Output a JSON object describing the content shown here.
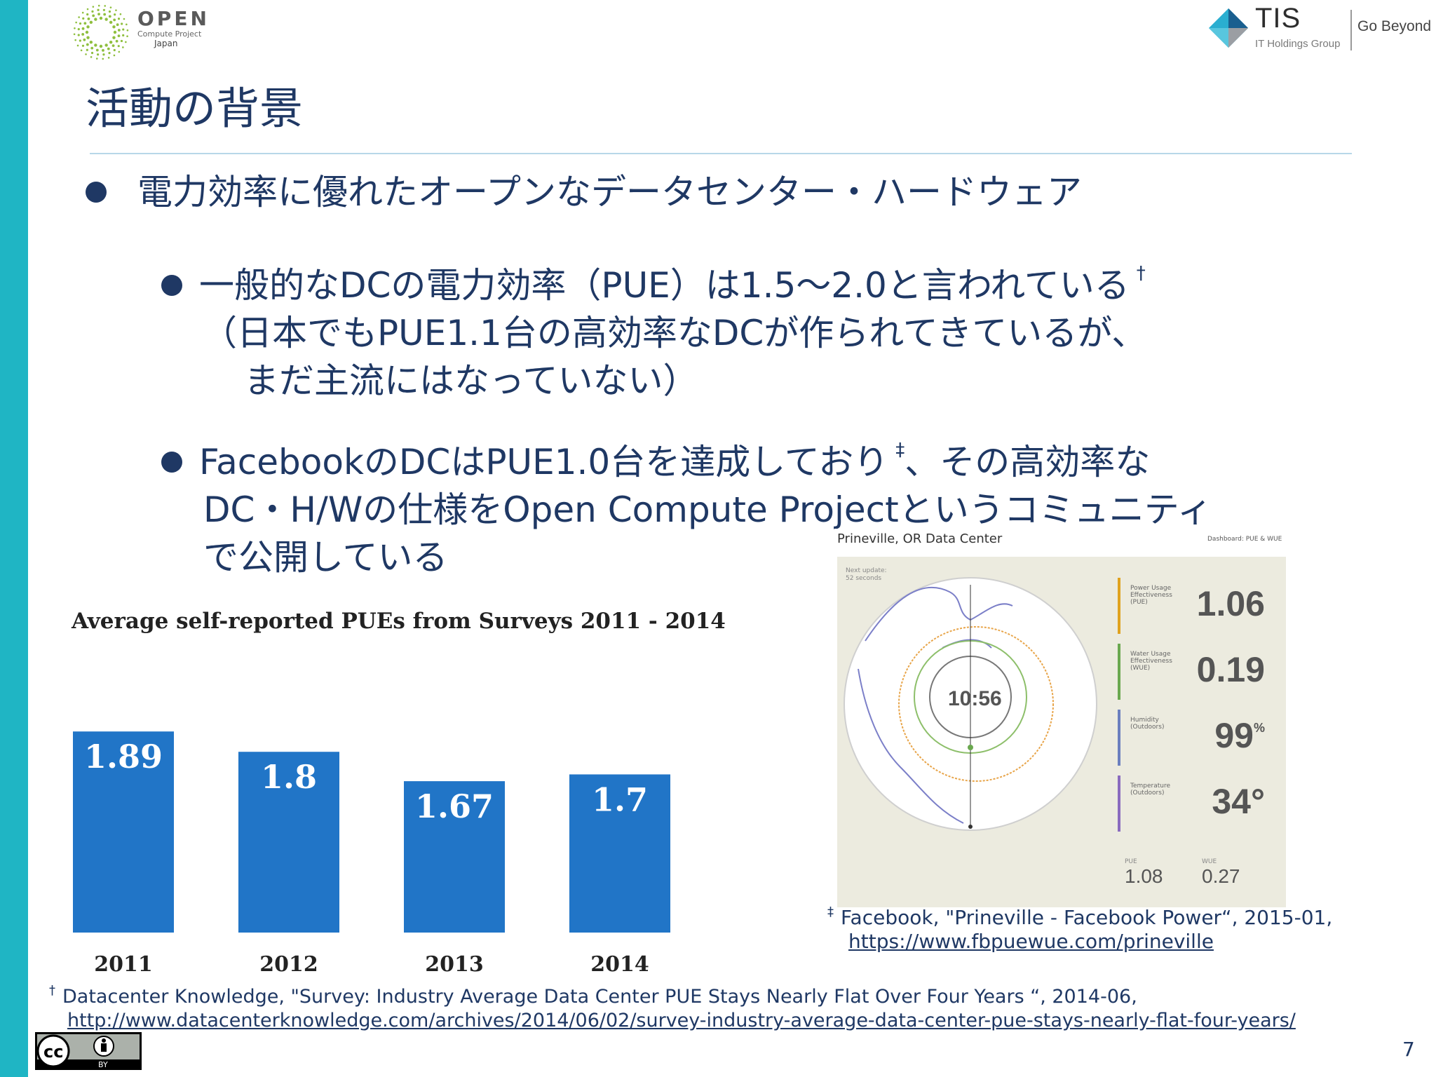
{
  "logos": {
    "ocp_open": "OPEN",
    "ocp_sub": "Compute Project",
    "ocp_japan": "Japan",
    "tis_name": "TIS",
    "tis_group": "IT Holdings Group",
    "tis_slogan": "Go Beyond"
  },
  "slide": {
    "title": "活動の背景",
    "page_number": "7"
  },
  "bullets": {
    "l1": "電力効率に優れたオープンなデータセンター・ハードウェア",
    "l2a_line1": "一般的なDCの電力効率（PUE）は1.5～2.0と言われている",
    "l2a_mark": "†",
    "l2a_line2": "（日本でもPUE1.1台の高効率なDCが作られてきているが、",
    "l2a_line3": "まだ主流にはなっていない）",
    "l2b_line1a": "FacebookのDCはPUE1.0台を達成しており",
    "l2b_mark": "‡",
    "l2b_line1b": "、その高効率な",
    "l2b_line2": "DC・H/Wの仕様をOpen Compute Projectというコミュニティ",
    "l2b_line3": "で公開している"
  },
  "chart_data": {
    "type": "bar",
    "title": "Average self-reported PUEs from Surveys 2011 - 2014",
    "categories": [
      "2011",
      "2012",
      "2013",
      "2014"
    ],
    "values": [
      1.89,
      1.8,
      1.67,
      1.7
    ],
    "value_labels": [
      "1.89",
      "1.8",
      "1.67",
      "1.7"
    ],
    "ylim": [
      1.0,
      1.9
    ],
    "colors": {
      "bar": "#2175c7"
    }
  },
  "dashboard": {
    "title": "Prineville, OR Data Center",
    "tag": "Dashboard: PUE & WUE",
    "clock": "10:56",
    "next_update": "Next update:\n52 seconds",
    "metrics": [
      {
        "label": "Power Usage\nEffectiveness\n(PUE)",
        "value": "1.06",
        "unit": "",
        "color": "#e0a21e"
      },
      {
        "label": "Water Usage\nEffectiveness\n(WUE)",
        "value": "0.19",
        "unit": "",
        "color": "#6aa84f"
      },
      {
        "label": "Humidity\n(Outdoors)",
        "value": "99",
        "unit": "%",
        "color": "#6b7fbf"
      },
      {
        "label": "Temperature\n(Outdoors)",
        "value": "34°",
        "unit": "",
        "color": "#8a6bbf"
      }
    ],
    "bottom_pue_label": "PUE",
    "bottom_pue": "1.08",
    "bottom_wue_label": "WUE",
    "bottom_wue": "0.27"
  },
  "footnotes": {
    "fn1_mark": "‡",
    "fn1_text": "Facebook, \"Prineville - Facebook Power“, 2015-01,",
    "fn1_url": "https://www.fbpuewue.com/prineville",
    "fn2_mark": "†",
    "fn2_text": "Datacenter Knowledge, \"Survey: Industry Average Data Center PUE Stays Nearly Flat Over Four Years “, 2014-06,",
    "fn2_url": "http://www.datacenterknowledge.com/archives/2014/06/02/survey-industry-average-data-center-pue-stays-nearly-flat-four-years/"
  },
  "license": {
    "cc": "cc",
    "by": "BY"
  }
}
